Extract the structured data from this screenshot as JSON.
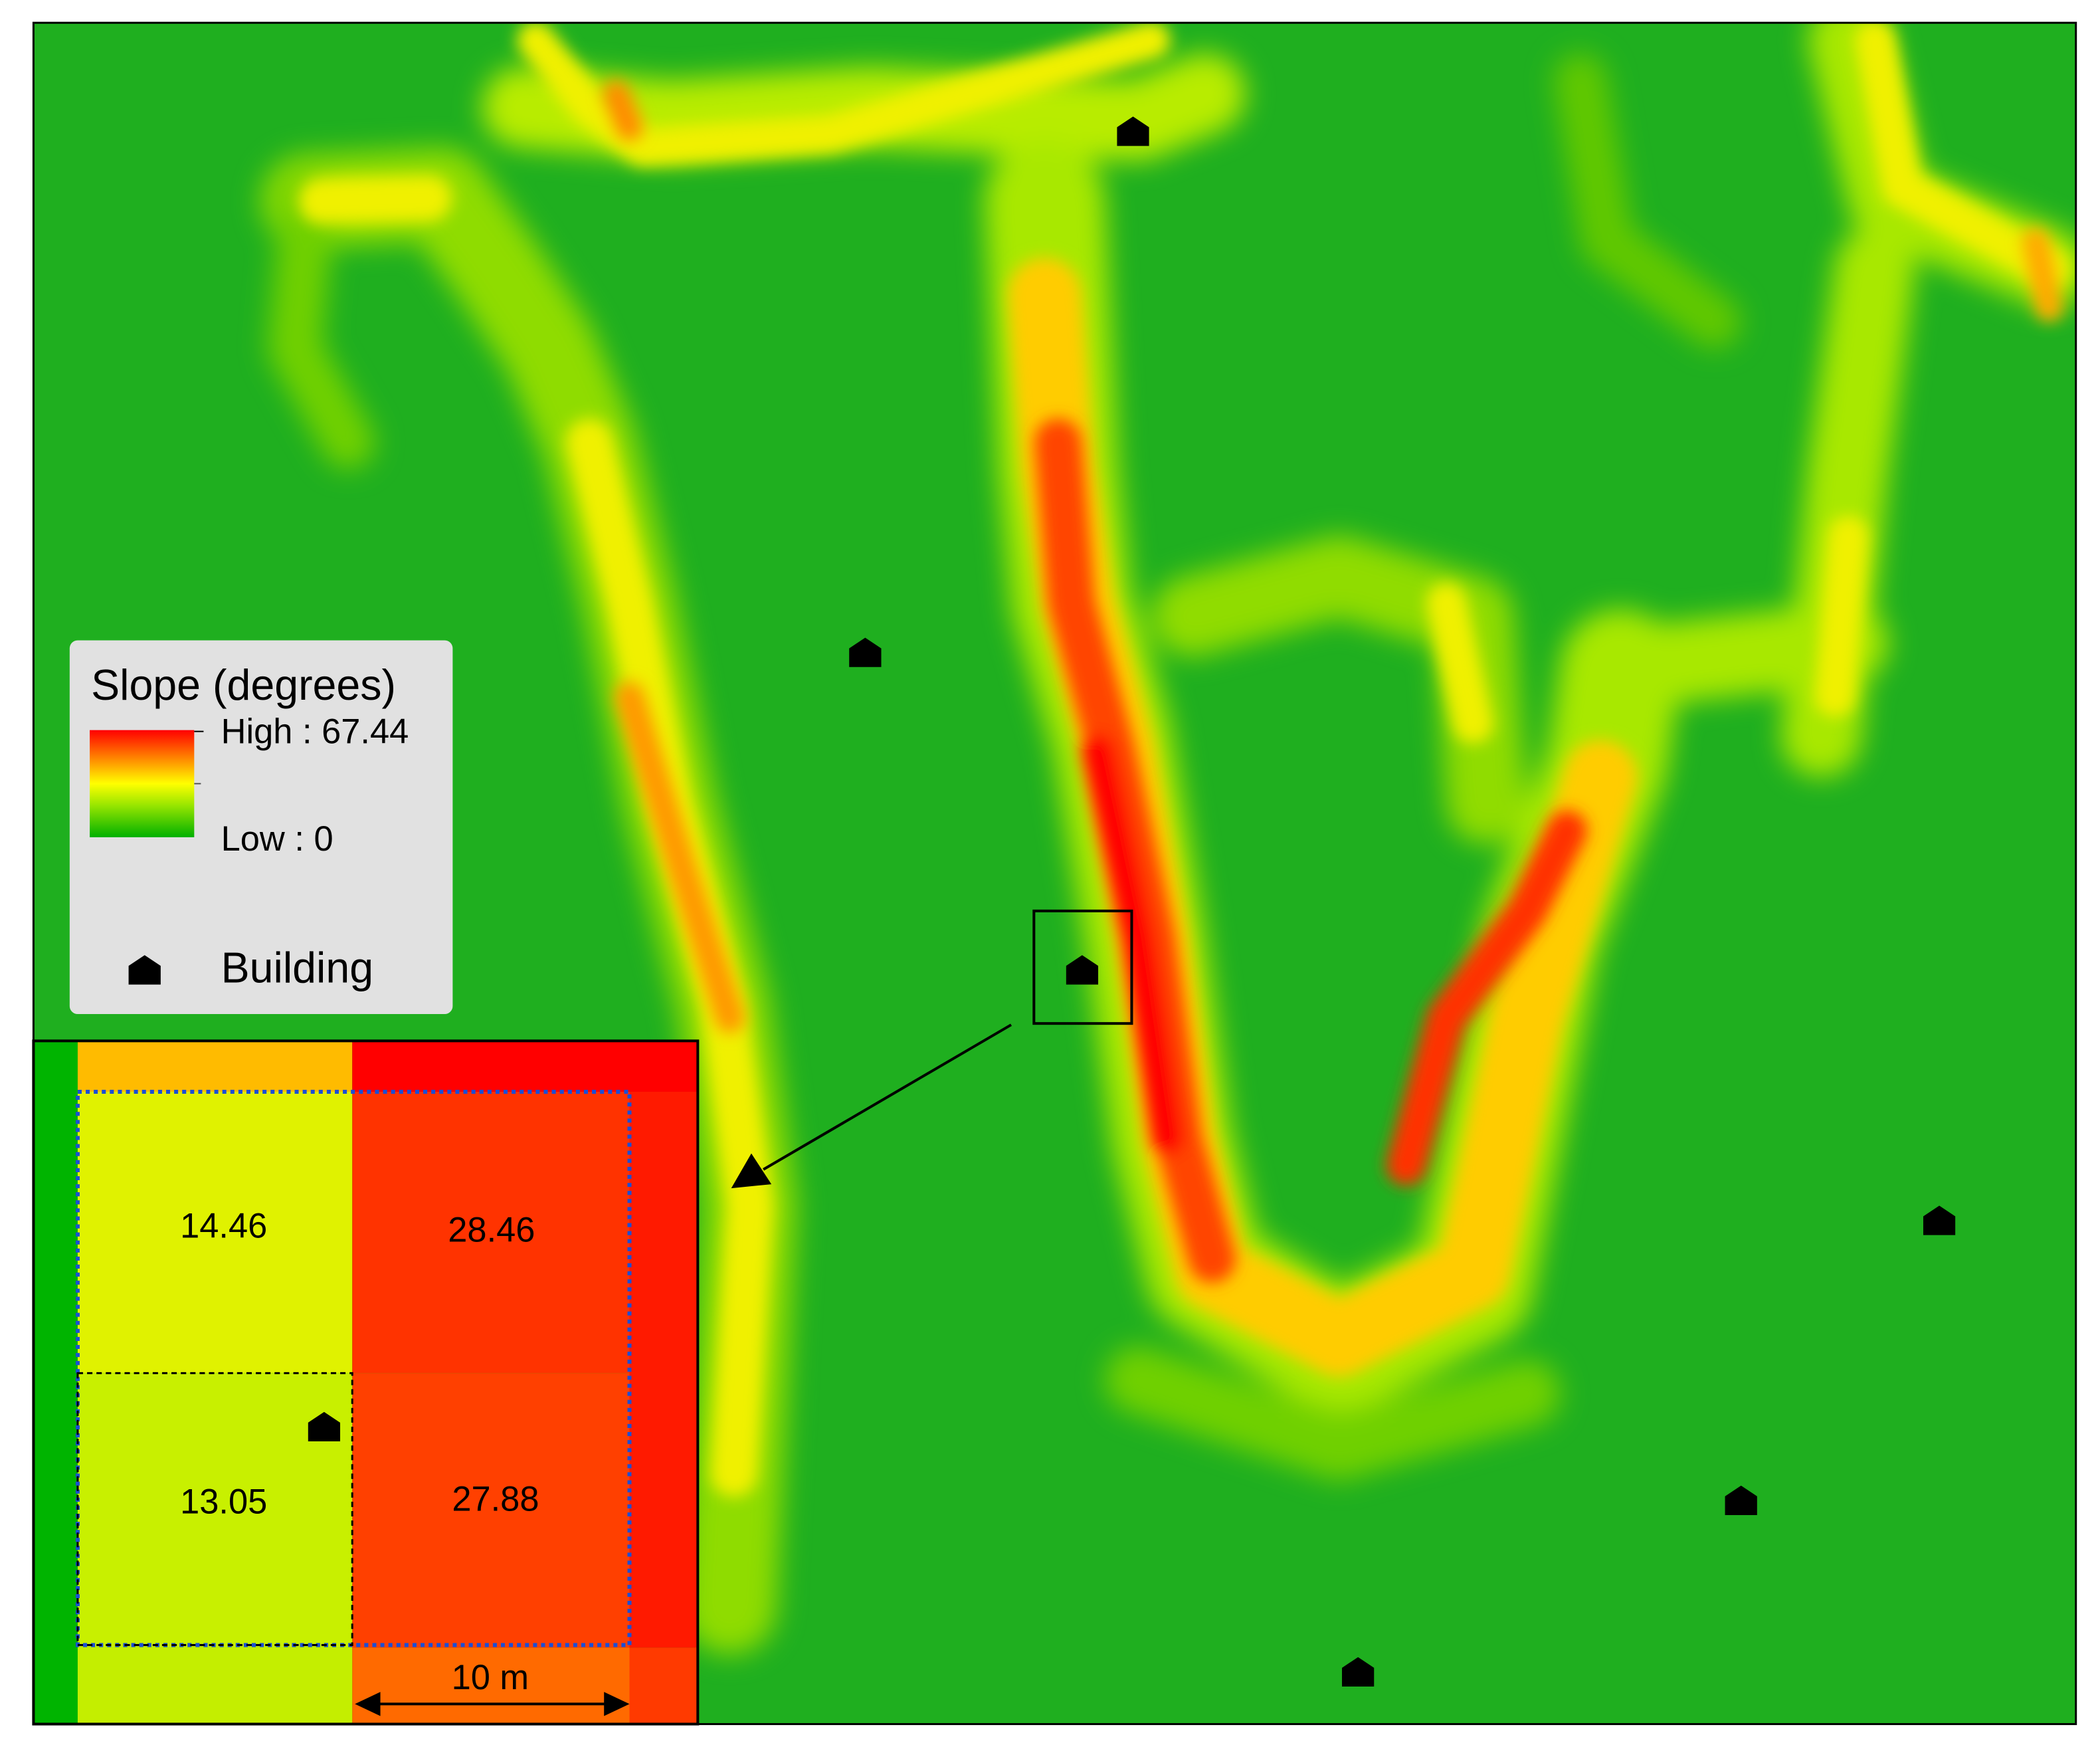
{
  "legend": {
    "title": "Slope (degrees)",
    "high": "High : 67.44",
    "low": "Low : 0",
    "building": "Building"
  },
  "inset": {
    "cells": [
      [
        "14.46",
        "28.46"
      ],
      [
        "13.05",
        "27.88"
      ]
    ],
    "scale_label": "10 m"
  }
}
